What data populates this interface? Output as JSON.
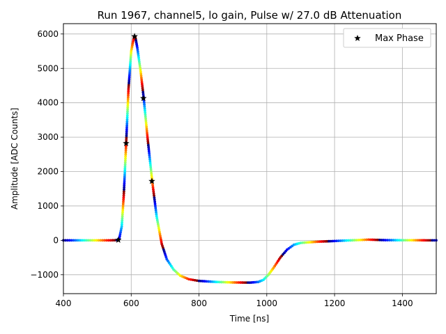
{
  "chart_data": {
    "type": "scatter",
    "title": "Run 1967, channel5, lo gain, Pulse w/ 27.0 dB Attenuation",
    "xlabel": "Time [ns]",
    "ylabel": "Amplitude [ADC Counts]",
    "xlim": [
      400,
      1500
    ],
    "ylim": [
      -1550,
      6300
    ],
    "xticks": [
      400,
      600,
      800,
      1000,
      1200,
      1400
    ],
    "yticks": [
      -1000,
      0,
      1000,
      2000,
      3000,
      4000,
      5000,
      6000
    ],
    "xtick_labels": [
      "400",
      "600",
      "800",
      "1000",
      "1200",
      "1400"
    ],
    "ytick_labels": [
      "−1000",
      "0",
      "1000",
      "2000",
      "3000",
      "4000",
      "5000",
      "6000"
    ],
    "grid": true,
    "legend_position": "top-right",
    "colormap": "jet",
    "pulse_curve": [
      [
        400,
        0
      ],
      [
        540,
        0
      ],
      [
        558,
        5
      ],
      [
        565,
        60
      ],
      [
        572,
        400
      ],
      [
        578,
        1300
      ],
      [
        585,
        2800
      ],
      [
        592,
        4400
      ],
      [
        600,
        5500
      ],
      [
        608,
        5900
      ],
      [
        612,
        5920
      ],
      [
        618,
        5600
      ],
      [
        628,
        4900
      ],
      [
        637,
        4130
      ],
      [
        648,
        3000
      ],
      [
        662,
        1720
      ],
      [
        675,
        700
      ],
      [
        690,
        -100
      ],
      [
        705,
        -550
      ],
      [
        725,
        -850
      ],
      [
        745,
        -1030
      ],
      [
        770,
        -1130
      ],
      [
        800,
        -1180
      ],
      [
        850,
        -1210
      ],
      [
        900,
        -1225
      ],
      [
        950,
        -1230
      ],
      [
        975,
        -1210
      ],
      [
        990,
        -1150
      ],
      [
        1005,
        -1000
      ],
      [
        1020,
        -800
      ],
      [
        1040,
        -500
      ],
      [
        1060,
        -270
      ],
      [
        1080,
        -130
      ],
      [
        1100,
        -75
      ],
      [
        1150,
        -40
      ],
      [
        1200,
        -20
      ],
      [
        1300,
        20
      ],
      [
        1350,
        5
      ],
      [
        1500,
        0
      ]
    ],
    "series": [
      {
        "name": "Max Phase",
        "marker": "star",
        "color": "#000000",
        "points": [
          [
            562,
            10
          ],
          [
            585,
            2820
          ],
          [
            610,
            5930
          ],
          [
            636,
            4130
          ],
          [
            661,
            1720
          ]
        ]
      }
    ]
  }
}
